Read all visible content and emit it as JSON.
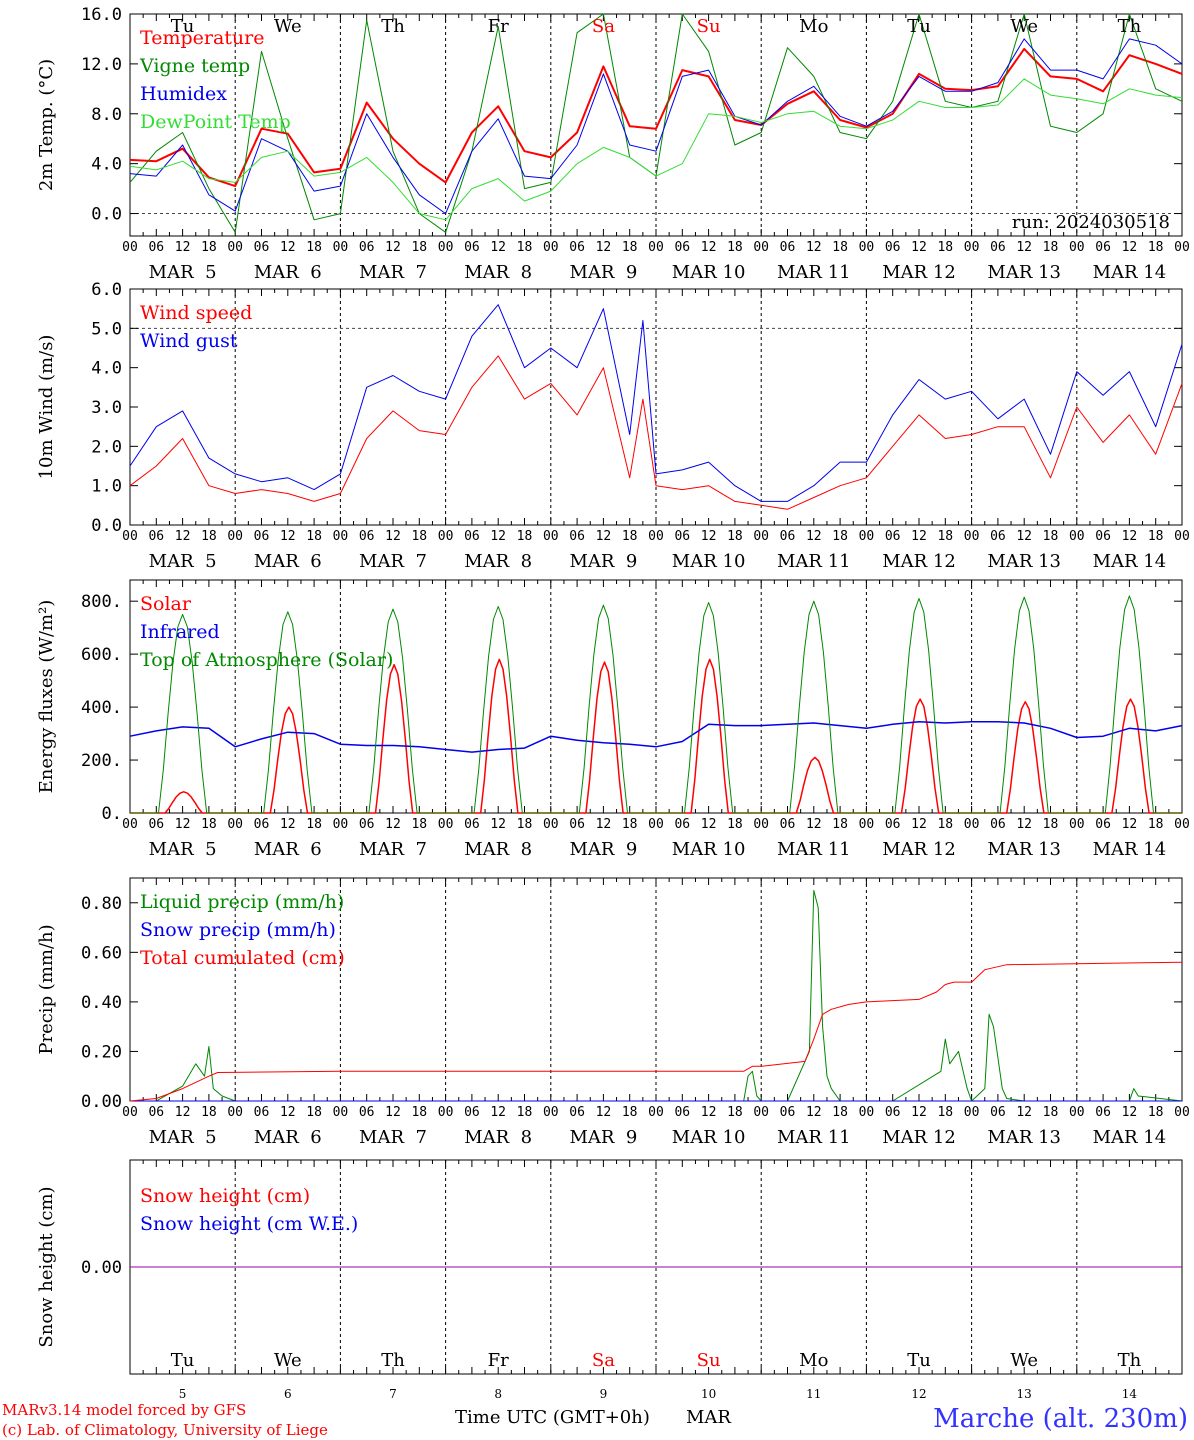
{
  "footer": {
    "model_line1": "MARv3.14 model forced by GFS",
    "model_line2": "(c) Lab. of Climatology, University of Liege",
    "time_label": "Time UTC (GMT+0h)",
    "month_label": "MAR",
    "location": "Marche (alt. 230m)"
  },
  "days": [
    {
      "abbr": "Tu",
      "num": "5",
      "weekend": false
    },
    {
      "abbr": "We",
      "num": "6",
      "weekend": false
    },
    {
      "abbr": "Th",
      "num": "7",
      "weekend": false
    },
    {
      "abbr": "Fr",
      "num": "8",
      "weekend": false
    },
    {
      "abbr": "Sa",
      "num": "9",
      "weekend": true
    },
    {
      "abbr": "Su",
      "num": "10",
      "weekend": true
    },
    {
      "abbr": "Mo",
      "num": "11",
      "weekend": false
    },
    {
      "abbr": "Tu",
      "num": "12",
      "weekend": false
    },
    {
      "abbr": "We",
      "num": "13",
      "weekend": false
    },
    {
      "abbr": "Th",
      "num": "14",
      "weekend": false
    }
  ],
  "hour_labels": [
    "00",
    "06",
    "12",
    "18"
  ],
  "date_labels": [
    "MAR  5",
    "MAR  6",
    "MAR  7",
    "MAR  8",
    "MAR  9",
    "MAR 10",
    "MAR 11",
    "MAR 12",
    "MAR 13",
    "MAR 14"
  ],
  "colors": {
    "red": "#ff0000",
    "green": "#008800",
    "blue": "#0000ee",
    "light_green": "#33dd33",
    "purple": "#9900aa",
    "footer_blue": "#3333ff"
  },
  "chart_data": [
    {
      "type": "line",
      "ylabel": "2m Temp. (°C)",
      "ylim": [
        -1.8,
        16.0
      ],
      "yticks": [
        "16.0",
        "12.0",
        "8.0",
        "4.0",
        "0.0"
      ],
      "ytick_values": [
        16,
        12,
        8,
        4,
        0
      ],
      "reference_line": 0,
      "annotation": "run: 2024030518",
      "x_unit": "hours from 2024-03-05 00 UTC",
      "series": [
        {
          "name": "Temperature",
          "color": "red",
          "width": 2,
          "x": [
            0,
            6,
            12,
            18,
            24,
            30,
            36,
            42,
            48,
            54,
            60,
            66,
            72,
            78,
            84,
            90,
            96,
            102,
            108,
            114,
            120,
            126,
            132,
            138,
            144,
            150,
            156,
            162,
            168,
            174,
            180,
            186,
            192,
            198,
            204,
            210,
            216,
            222,
            228,
            234,
            240
          ],
          "y": [
            4.3,
            4.2,
            5.2,
            2.9,
            2.2,
            6.8,
            6.4,
            3.3,
            3.6,
            8.9,
            6.0,
            4.0,
            2.5,
            6.5,
            8.6,
            5.0,
            4.5,
            6.5,
            11.8,
            7.0,
            6.8,
            11.5,
            11.0,
            7.5,
            7.1,
            8.8,
            9.8,
            7.5,
            6.9,
            8.0,
            11.2,
            10.0,
            9.9,
            10.2,
            13.2,
            11.0,
            10.8,
            9.8,
            12.7,
            12.0,
            11.2
          ]
        },
        {
          "name": "Vigne temp",
          "color": "green",
          "width": 1,
          "x": [
            0,
            6,
            12,
            18,
            24,
            30,
            36,
            42,
            48,
            54,
            60,
            66,
            72,
            78,
            84,
            90,
            96,
            102,
            108,
            114,
            120,
            126,
            132,
            138,
            144,
            150,
            156,
            162,
            168,
            174,
            180,
            186,
            192,
            198,
            204,
            210,
            216,
            222,
            228,
            234,
            240
          ],
          "y": [
            2.5,
            5.0,
            6.5,
            2.0,
            -1.5,
            13.0,
            6.0,
            -0.5,
            0.0,
            15.5,
            5.0,
            0.0,
            -1.5,
            5.0,
            15.0,
            2.0,
            2.5,
            14.5,
            16.0,
            4.5,
            3.0,
            16.0,
            13.0,
            5.5,
            6.5,
            13.3,
            11.0,
            6.5,
            6.0,
            9.0,
            16.0,
            9.0,
            8.5,
            9.0,
            16.0,
            7.0,
            6.5,
            8.0,
            16.0,
            10.0,
            9.0
          ]
        },
        {
          "name": "Humidex",
          "color": "blue",
          "width": 1,
          "x": [
            0,
            6,
            12,
            18,
            24,
            30,
            36,
            42,
            48,
            54,
            60,
            66,
            72,
            78,
            84,
            90,
            96,
            102,
            108,
            114,
            120,
            126,
            132,
            138,
            144,
            150,
            156,
            162,
            168,
            174,
            180,
            186,
            192,
            198,
            204,
            210,
            216,
            222,
            228,
            234,
            240
          ],
          "y": [
            3.2,
            3.0,
            5.5,
            1.5,
            0.2,
            6.0,
            5.0,
            1.8,
            2.2,
            8.0,
            4.5,
            1.5,
            0.0,
            5.0,
            7.6,
            3.0,
            2.8,
            5.5,
            11.2,
            5.5,
            5.0,
            11.0,
            11.5,
            7.8,
            7.1,
            9.0,
            10.2,
            7.8,
            7.0,
            8.2,
            11.0,
            9.8,
            9.8,
            10.5,
            14.0,
            11.5,
            11.5,
            10.8,
            14.0,
            13.5,
            12.0
          ]
        },
        {
          "name": "DewPoint Temp",
          "color": "light_green",
          "width": 1,
          "x": [
            0,
            6,
            12,
            18,
            24,
            30,
            36,
            42,
            48,
            54,
            60,
            66,
            72,
            78,
            84,
            90,
            96,
            102,
            108,
            114,
            120,
            126,
            132,
            138,
            144,
            150,
            156,
            162,
            168,
            174,
            180,
            186,
            192,
            198,
            204,
            210,
            216,
            222,
            228,
            234,
            240
          ],
          "y": [
            3.8,
            3.5,
            4.2,
            2.8,
            2.5,
            4.5,
            5.0,
            3.0,
            3.3,
            4.5,
            2.5,
            0.0,
            -0.5,
            2.0,
            2.8,
            1.0,
            1.8,
            4.0,
            5.3,
            4.5,
            3.0,
            4.0,
            8.0,
            7.8,
            7.3,
            8.0,
            8.2,
            7.0,
            6.8,
            7.5,
            9.0,
            8.5,
            8.5,
            8.7,
            10.8,
            9.5,
            9.2,
            8.8,
            10.0,
            9.5,
            9.3
          ]
        }
      ]
    },
    {
      "type": "line",
      "ylabel": "10m Wind (m/s)",
      "ylim": [
        0,
        6.0
      ],
      "yticks": [
        "6.0",
        "5.0",
        "4.0",
        "3.0",
        "2.0",
        "1.0",
        "0.0"
      ],
      "ytick_values": [
        6,
        5,
        4,
        3,
        2,
        1,
        0
      ],
      "reference_line": 5,
      "series": [
        {
          "name": "Wind speed",
          "color": "red",
          "width": 1,
          "x": [
            0,
            6,
            12,
            18,
            24,
            30,
            36,
            42,
            48,
            54,
            60,
            66,
            72,
            78,
            84,
            90,
            96,
            102,
            108,
            114,
            117,
            120,
            126,
            132,
            138,
            144,
            150,
            156,
            162,
            168,
            174,
            180,
            186,
            192,
            198,
            204,
            210,
            216,
            222,
            228,
            234,
            240
          ],
          "y": [
            1.0,
            1.5,
            2.2,
            1.0,
            0.8,
            0.9,
            0.8,
            0.6,
            0.8,
            2.2,
            2.9,
            2.4,
            2.3,
            3.5,
            4.3,
            3.2,
            3.6,
            2.8,
            4.0,
            1.2,
            3.2,
            1.0,
            0.9,
            1.0,
            0.6,
            0.5,
            0.4,
            0.7,
            1.0,
            1.2,
            2.0,
            2.8,
            2.2,
            2.3,
            2.5,
            2.5,
            1.2,
            3.0,
            2.1,
            2.8,
            1.8,
            3.6
          ]
        },
        {
          "name": "Wind gust",
          "color": "blue",
          "width": 1,
          "x": [
            0,
            6,
            12,
            18,
            24,
            30,
            36,
            42,
            48,
            54,
            60,
            66,
            72,
            78,
            84,
            90,
            96,
            102,
            108,
            114,
            117,
            120,
            126,
            132,
            138,
            144,
            150,
            156,
            162,
            168,
            174,
            180,
            186,
            192,
            198,
            204,
            210,
            216,
            222,
            228,
            234,
            240
          ],
          "y": [
            1.5,
            2.5,
            2.9,
            1.7,
            1.3,
            1.1,
            1.2,
            0.9,
            1.3,
            3.5,
            3.8,
            3.4,
            3.2,
            4.8,
            5.6,
            4.0,
            4.5,
            4.0,
            5.5,
            2.3,
            5.2,
            1.3,
            1.4,
            1.6,
            1.0,
            0.6,
            0.6,
            1.0,
            1.6,
            1.6,
            2.8,
            3.7,
            3.2,
            3.4,
            2.7,
            3.2,
            1.8,
            3.9,
            3.3,
            3.9,
            2.5,
            4.6
          ]
        }
      ]
    },
    {
      "type": "line",
      "ylabel": "Energy fluxes (W/m²)",
      "ylim": [
        0,
        880
      ],
      "yticks": [
        "800.",
        "600.",
        "400.",
        "200.",
        "0."
      ],
      "ytick_values": [
        800,
        600,
        400,
        200,
        0
      ],
      "series": [
        {
          "name": "Solar",
          "color": "red",
          "width": 1.5,
          "peaks": [
            [
              12,
              80
            ],
            [
              36,
              400
            ],
            [
              60,
              560
            ],
            [
              84,
              580
            ],
            [
              108,
              570
            ],
            [
              132,
              580
            ],
            [
              156,
              210
            ],
            [
              180,
              430
            ],
            [
              204,
              420
            ],
            [
              228,
              430
            ]
          ]
        },
        {
          "name": "Infrared",
          "color": "blue",
          "width": 1.5,
          "x": [
            0,
            6,
            12,
            18,
            24,
            30,
            36,
            42,
            48,
            54,
            60,
            66,
            72,
            78,
            84,
            90,
            96,
            102,
            108,
            114,
            120,
            126,
            132,
            138,
            144,
            150,
            156,
            162,
            168,
            174,
            180,
            186,
            192,
            198,
            204,
            210,
            216,
            222,
            228,
            234,
            240
          ],
          "y": [
            290,
            310,
            325,
            320,
            250,
            280,
            305,
            300,
            260,
            255,
            255,
            250,
            240,
            230,
            240,
            245,
            290,
            275,
            265,
            260,
            250,
            270,
            335,
            330,
            330,
            335,
            340,
            330,
            320,
            335,
            345,
            340,
            345,
            345,
            340,
            320,
            285,
            290,
            320,
            310,
            330
          ]
        },
        {
          "name": "Top of Atmosphere (Solar)",
          "color": "green",
          "width": 1,
          "peaks": [
            [
              12,
              750
            ],
            [
              36,
              760
            ],
            [
              60,
              770
            ],
            [
              84,
              780
            ],
            [
              108,
              785
            ],
            [
              132,
              795
            ],
            [
              156,
              800
            ],
            [
              180,
              810
            ],
            [
              204,
              815
            ],
            [
              228,
              820
            ]
          ]
        }
      ]
    },
    {
      "type": "line",
      "ylabel": "Precip (mm/h)",
      "ylim": [
        0,
        0.9
      ],
      "yticks": [
        "0.80",
        "0.60",
        "0.40",
        "0.20",
        "0.00"
      ],
      "ytick_values": [
        0.8,
        0.6,
        0.4,
        0.2,
        0.0
      ],
      "series": [
        {
          "name": "Liquid precip (mm/h)",
          "color": "green",
          "width": 1,
          "x": [
            0,
            6,
            9,
            12,
            15,
            17,
            18,
            19,
            21,
            24,
            48,
            72,
            96,
            120,
            140,
            141,
            142,
            143,
            144,
            150,
            155,
            156,
            157,
            158,
            159,
            160,
            162,
            174,
            185,
            186,
            187,
            189,
            191,
            192,
            195,
            196,
            197,
            199,
            200,
            204,
            210,
            228,
            229,
            230,
            240
          ],
          "y": [
            0,
            0,
            0.03,
            0.06,
            0.15,
            0.1,
            0.22,
            0.05,
            0.02,
            0,
            0,
            0,
            0,
            0,
            0,
            0.1,
            0.12,
            0.02,
            0,
            0,
            0.2,
            0.85,
            0.78,
            0.3,
            0.1,
            0.05,
            0,
            0,
            0.12,
            0.25,
            0.15,
            0.2,
            0.05,
            0,
            0.05,
            0.35,
            0.3,
            0.05,
            0.01,
            0,
            0,
            0,
            0.05,
            0.02,
            0
          ]
        },
        {
          "name": "Snow precip (mm/h)",
          "color": "blue",
          "width": 1,
          "x": [
            0,
            240
          ],
          "y": [
            0,
            0
          ]
        },
        {
          "name": "Total cumulated (cm)",
          "color": "red",
          "width": 1,
          "x": [
            0,
            6,
            12,
            18,
            20,
            48,
            96,
            120,
            140,
            142,
            144,
            154,
            156,
            158,
            160,
            164,
            168,
            174,
            180,
            184,
            186,
            188,
            192,
            195,
            200,
            240
          ],
          "y": [
            0,
            0.01,
            0.05,
            0.1,
            0.115,
            0.12,
            0.12,
            0.12,
            0.12,
            0.14,
            0.14,
            0.16,
            0.25,
            0.35,
            0.37,
            0.39,
            0.4,
            0.405,
            0.41,
            0.44,
            0.47,
            0.48,
            0.48,
            0.53,
            0.55,
            0.56
          ]
        }
      ]
    },
    {
      "type": "line",
      "ylabel": "Snow height (cm)",
      "ylim": [
        -0.5,
        0.5
      ],
      "yticks": [
        "0.00"
      ],
      "ytick_values": [
        0.0
      ],
      "series": [
        {
          "name": "Snow height (cm)",
          "color": "red",
          "width": 1,
          "x": [
            0,
            240
          ],
          "y": [
            0,
            0
          ]
        },
        {
          "name": "Snow height (cm W.E.)",
          "color": "blue",
          "width": 1,
          "x": [
            0,
            240
          ],
          "y": [
            0,
            0
          ]
        }
      ]
    }
  ]
}
